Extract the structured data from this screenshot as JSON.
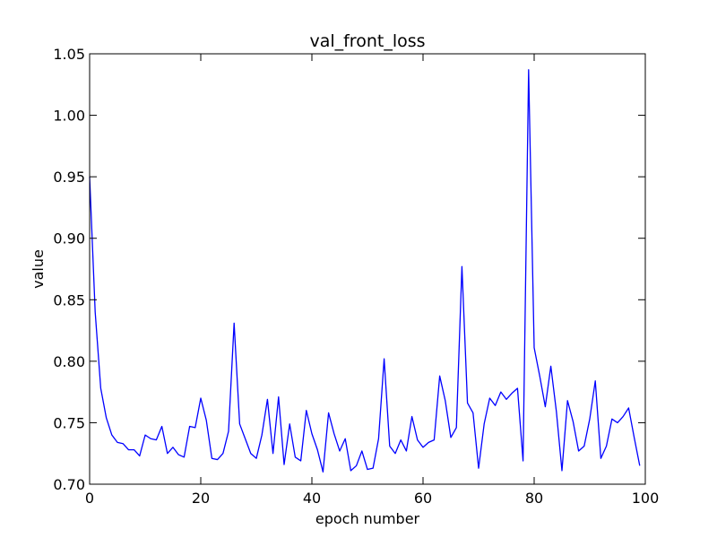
{
  "chart_data": {
    "type": "line",
    "title": "val_front_loss",
    "xlabel": "epoch number",
    "ylabel": "value",
    "xlim": [
      0,
      100
    ],
    "ylim": [
      0.7,
      1.05
    ],
    "xticks": [
      "0",
      "20",
      "40",
      "60",
      "80",
      "100"
    ],
    "yticks": [
      "0.70",
      "0.75",
      "0.80",
      "0.85",
      "0.90",
      "0.95",
      "1.00",
      "1.05"
    ],
    "grid": false,
    "legend": "none",
    "series": [
      {
        "color": "#0000ff",
        "x": [
          0,
          1,
          2,
          3,
          4,
          5,
          6,
          7,
          8,
          9,
          10,
          11,
          12,
          13,
          14,
          15,
          16,
          17,
          18,
          19,
          20,
          21,
          22,
          23,
          24,
          25,
          26,
          27,
          28,
          29,
          30,
          31,
          32,
          33,
          34,
          35,
          36,
          37,
          38,
          39,
          40,
          41,
          42,
          43,
          44,
          45,
          46,
          47,
          48,
          49,
          50,
          51,
          52,
          53,
          54,
          55,
          56,
          57,
          58,
          59,
          60,
          61,
          62,
          63,
          64,
          65,
          66,
          67,
          68,
          69,
          70,
          71,
          72,
          73,
          74,
          75,
          76,
          77,
          78,
          79,
          80,
          81,
          82,
          83,
          84,
          85,
          86,
          87,
          88,
          89,
          90,
          91,
          92,
          93,
          94,
          95,
          96,
          97,
          98,
          99
        ],
        "y": [
          0.95,
          0.84,
          0.778,
          0.754,
          0.74,
          0.734,
          0.733,
          0.728,
          0.728,
          0.723,
          0.74,
          0.737,
          0.736,
          0.747,
          0.725,
          0.73,
          0.724,
          0.722,
          0.747,
          0.746,
          0.77,
          0.752,
          0.721,
          0.72,
          0.725,
          0.743,
          0.831,
          0.749,
          0.737,
          0.725,
          0.721,
          0.74,
          0.769,
          0.725,
          0.771,
          0.716,
          0.749,
          0.722,
          0.719,
          0.76,
          0.741,
          0.728,
          0.71,
          0.758,
          0.741,
          0.727,
          0.737,
          0.711,
          0.715,
          0.727,
          0.712,
          0.713,
          0.737,
          0.802,
          0.731,
          0.725,
          0.736,
          0.727,
          0.755,
          0.736,
          0.73,
          0.734,
          0.736,
          0.788,
          0.768,
          0.738,
          0.746,
          0.877,
          0.766,
          0.758,
          0.713,
          0.749,
          0.77,
          0.764,
          0.775,
          0.769,
          0.774,
          0.778,
          0.719,
          1.037,
          0.811,
          0.788,
          0.763,
          0.796,
          0.759,
          0.711,
          0.768,
          0.751,
          0.727,
          0.731,
          0.753,
          0.784,
          0.721,
          0.731,
          0.753,
          0.75,
          0.755,
          0.762,
          0.738,
          0.715
        ]
      }
    ]
  }
}
